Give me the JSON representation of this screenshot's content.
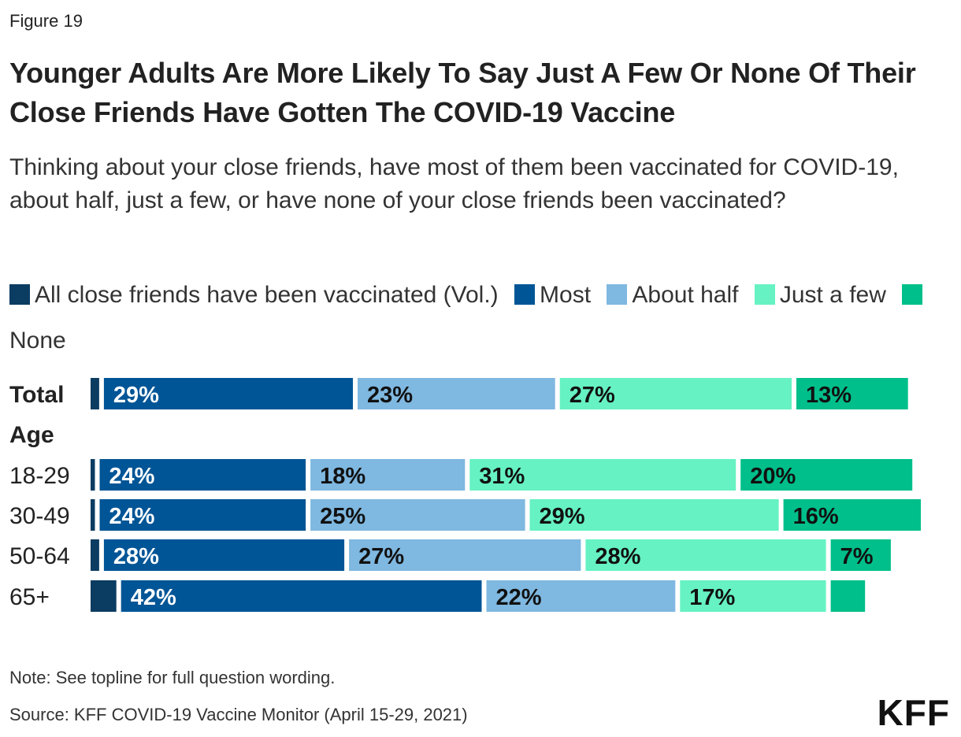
{
  "figure_label": "Figure 19",
  "logo": "KFF",
  "note": "Note: See topline for full question wording.",
  "source": "Source: KFF COVID-19 Vaccine Monitor (April 15-29, 2021)",
  "colors": {
    "all": "#0b3c61",
    "most": "#005596",
    "about_half": "#7fb8e0",
    "just_a_few": "#66f2c2",
    "none": "#00bf8a",
    "label_light": "#ffffff",
    "label_dark": "#111111"
  },
  "chart_data": {
    "type": "bar",
    "orientation": "horizontal",
    "stacked": true,
    "title": "Younger Adults Are More Likely To Say Just A Few Or None Of Their Close Friends Have Gotten The COVID-19 Vaccine",
    "subtitle": "Thinking about your close friends, have most of them been vaccinated for COVID-19, about half, just a few, or have none of your close friends been vaccinated?",
    "legend_position": "top",
    "xlim": [
      0,
      100
    ],
    "grid": false,
    "categories": [
      "Total",
      "Age",
      "18-29",
      "30-49",
      "50-64",
      "65+"
    ],
    "category_bold": [
      true,
      true,
      false,
      false,
      false,
      false
    ],
    "series": [
      {
        "name": "All close friends have been vaccinated (Vol.)",
        "values": [
          1,
          null,
          0.5,
          0.5,
          1,
          3
        ]
      },
      {
        "name": "Most",
        "values": [
          29,
          null,
          24,
          24,
          28,
          42
        ]
      },
      {
        "name": "About half",
        "values": [
          23,
          null,
          18,
          25,
          27,
          22
        ]
      },
      {
        "name": "Just a few",
        "values": [
          27,
          null,
          31,
          29,
          28,
          17
        ]
      },
      {
        "name": "None",
        "values": [
          13,
          null,
          20,
          16,
          7,
          4
        ]
      }
    ],
    "data_labels": [
      [
        null,
        "29%",
        "23%",
        "27%",
        "13%"
      ],
      null,
      [
        null,
        "24%",
        "18%",
        "31%",
        "20%"
      ],
      [
        null,
        "24%",
        "25%",
        "29%",
        "16%"
      ],
      [
        null,
        "28%",
        "27%",
        "28%",
        "7%"
      ],
      [
        null,
        "42%",
        "22%",
        "17%",
        null
      ]
    ]
  }
}
